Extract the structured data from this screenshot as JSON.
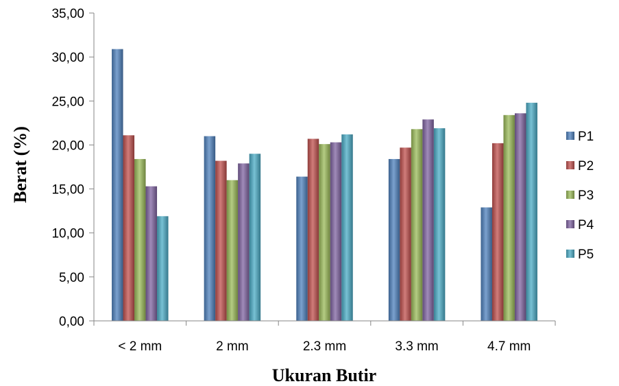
{
  "chart_data": {
    "type": "bar",
    "title": "",
    "xlabel": "Ukuran  Butir",
    "ylabel": "Berat (%)",
    "categories": [
      "< 2 mm",
      "2 mm",
      "2.3 mm",
      "3.3 mm",
      "4.7 mm"
    ],
    "ylim": [
      0,
      35
    ],
    "yticks": [
      "0,00",
      "5,00",
      "10,00",
      "15,00",
      "20,00",
      "25,00",
      "30,00",
      "35,00"
    ],
    "grid": false,
    "legend_position": "right",
    "series": [
      {
        "name": "P1",
        "color": "#4F81BD",
        "values": [
          30.9,
          21.0,
          16.4,
          18.4,
          12.9
        ]
      },
      {
        "name": "P2",
        "color": "#C0504D",
        "values": [
          21.1,
          18.2,
          20.7,
          19.7,
          20.2
        ]
      },
      {
        "name": "P3",
        "color": "#9BBB59",
        "values": [
          18.4,
          16.0,
          20.1,
          21.8,
          23.4
        ]
      },
      {
        "name": "P4",
        "color": "#8064A2",
        "values": [
          15.3,
          17.9,
          20.3,
          22.9,
          23.6
        ]
      },
      {
        "name": "P5",
        "color": "#4BACC6",
        "values": [
          11.9,
          19.0,
          21.2,
          21.9,
          24.8
        ]
      }
    ]
  }
}
